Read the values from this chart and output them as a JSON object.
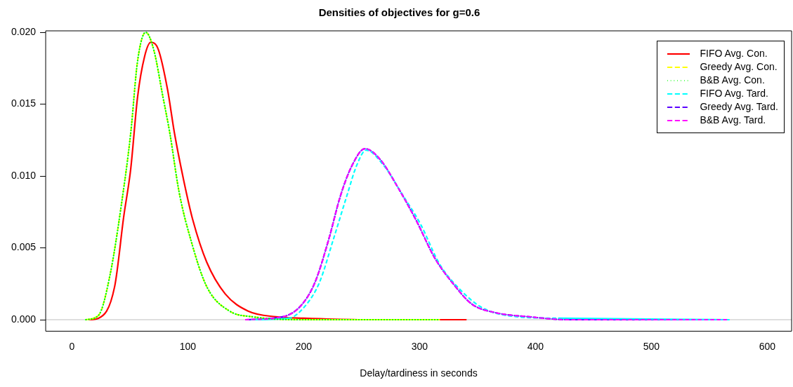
{
  "chart_data": {
    "type": "line",
    "title": "Densities of objectives for g=0.6",
    "xlabel": "Delay/tardiness in seconds",
    "xlim": [
      -22.7,
      621
    ],
    "xticks": [
      0,
      100,
      200,
      300,
      400,
      500,
      600
    ],
    "ylim": [
      -0.0008,
      0.0201
    ],
    "yticks": [
      {
        "value": 0,
        "label": "0.000"
      },
      {
        "value": 0.005,
        "label": "0.005"
      },
      {
        "value": 0.01,
        "label": "0.010"
      },
      {
        "value": 0.015,
        "label": "0.015"
      },
      {
        "value": 0.02,
        "label": "0.020"
      }
    ],
    "grid": false,
    "legend": "top right",
    "marker": "none",
    "ref_lines": [
      {
        "axis": "y",
        "value": 0,
        "color": "#bebebe"
      }
    ],
    "series": [
      {
        "name": "FIFO Avg. Con.",
        "color": "#ff0000",
        "line_style": "solid",
        "x": [
          15,
          22.9,
          36.8,
          44.7,
          50.7,
          56.6,
          62.6,
          68,
          74.5,
          82.5,
          88.4,
          96.4,
          104.4,
          116.3,
          132.2,
          152,
          176,
          200,
          250,
          340
        ],
        "values": [
          0,
          0.0001,
          0.0023,
          0.0072,
          0.0105,
          0.0155,
          0.0183,
          0.0193,
          0.0188,
          0.016,
          0.013,
          0.0097,
          0.0069,
          0.004,
          0.0018,
          0.0006,
          0.0002,
          0.0001,
          0,
          0
        ]
      },
      {
        "name": "Greedy Avg. Con.",
        "color": "#ffff00",
        "line_style": "dashed",
        "x": [
          12,
          22.9,
          32.8,
          42.8,
          50.7,
          56.6,
          63.6,
          70.5,
          78.5,
          84.4,
          92.4,
          102.4,
          116.3,
          136,
          156,
          200,
          317
        ],
        "values": [
          0,
          0.0003,
          0.0031,
          0.0081,
          0.013,
          0.018,
          0.02,
          0.0188,
          0.0155,
          0.013,
          0.0089,
          0.0056,
          0.0023,
          0.0006,
          0.0002,
          0,
          0
        ]
      },
      {
        "name": "B&B Avg. Con.",
        "color": "#00ff00",
        "line_style": "dotted",
        "x": [
          12,
          22.9,
          32.8,
          42.8,
          50.7,
          56.6,
          63.6,
          70.5,
          78.5,
          84.4,
          92.4,
          102.4,
          116.3,
          136,
          156,
          200,
          317
        ],
        "values": [
          0,
          0.0003,
          0.0031,
          0.0081,
          0.013,
          0.018,
          0.02,
          0.0188,
          0.0155,
          0.013,
          0.0089,
          0.0056,
          0.0023,
          0.0006,
          0.0002,
          0,
          0
        ]
      },
      {
        "name": "FIFO Avg. Tard.",
        "color": "#00ffff",
        "line_style": "dashed",
        "x": [
          155,
          187,
          201.7,
          213.6,
          225.6,
          237.5,
          245.5,
          253.8,
          269.3,
          285.2,
          301.1,
          317,
          334.9,
          354.8,
          384.6,
          420,
          567
        ],
        "values": [
          0,
          0.0001,
          0.001,
          0.0026,
          0.0056,
          0.0087,
          0.0107,
          0.0118,
          0.0107,
          0.0087,
          0.0066,
          0.0039,
          0.0021,
          0.0008,
          0.0002,
          0.0001,
          0
        ]
      },
      {
        "name": "Greedy Avg. Tard.",
        "color": "#5a00ff",
        "line_style": "dashed",
        "x": [
          150,
          181.9,
          197.8,
          209.7,
          221.6,
          231.6,
          241.5,
          252.8,
          265.4,
          281.3,
          297.1,
          313,
          329,
          344.8,
          364.7,
          394.5,
          430,
          565
        ],
        "values": [
          0,
          0.0002,
          0.001,
          0.0026,
          0.0056,
          0.0086,
          0.0107,
          0.0119,
          0.0112,
          0.0092,
          0.0069,
          0.0043,
          0.0025,
          0.0011,
          0.0005,
          0.0002,
          0,
          0
        ]
      },
      {
        "name": "B&B Avg. Tard.",
        "color": "#ff00ff",
        "line_style": "dashed",
        "x": [
          150,
          181.9,
          197.8,
          209.7,
          221.6,
          231.6,
          241.5,
          252.8,
          265.4,
          281.3,
          297.1,
          313,
          329,
          344.8,
          364.7,
          394.5,
          430,
          565
        ],
        "values": [
          0,
          0.0002,
          0.001,
          0.0026,
          0.0056,
          0.0086,
          0.0107,
          0.0119,
          0.0112,
          0.0092,
          0.0069,
          0.0043,
          0.0025,
          0.0011,
          0.0005,
          0.0002,
          0,
          0
        ]
      }
    ]
  }
}
